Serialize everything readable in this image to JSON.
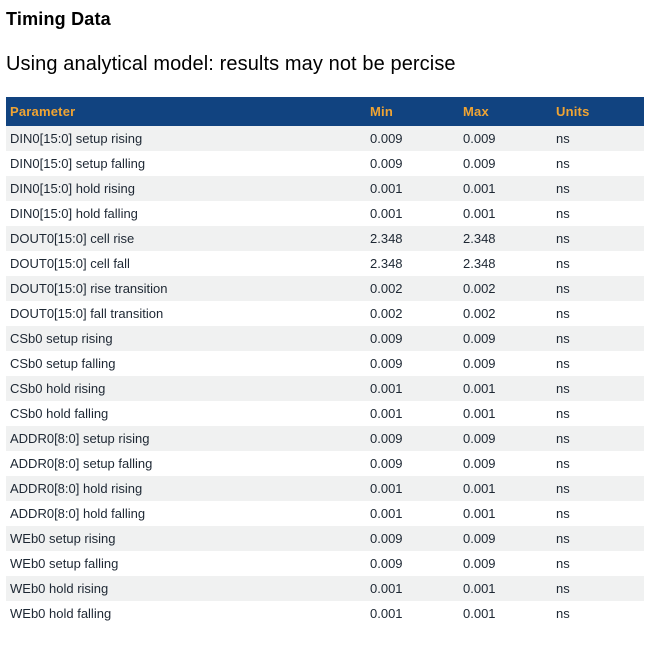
{
  "page": {
    "title": "Timing Data",
    "subtitle": "Using analytical model: results may not be percise"
  },
  "table": {
    "headers": [
      "Parameter",
      "Min",
      "Max",
      "Units"
    ],
    "rows": [
      {
        "parameter": "DIN0[15:0] setup rising",
        "min": "0.009",
        "max": "0.009",
        "units": "ns"
      },
      {
        "parameter": "DIN0[15:0] setup falling",
        "min": "0.009",
        "max": "0.009",
        "units": "ns"
      },
      {
        "parameter": "DIN0[15:0] hold rising",
        "min": "0.001",
        "max": "0.001",
        "units": "ns"
      },
      {
        "parameter": "DIN0[15:0] hold falling",
        "min": "0.001",
        "max": "0.001",
        "units": "ns"
      },
      {
        "parameter": "DOUT0[15:0] cell rise",
        "min": "2.348",
        "max": "2.348",
        "units": "ns"
      },
      {
        "parameter": "DOUT0[15:0] cell fall",
        "min": "2.348",
        "max": "2.348",
        "units": "ns"
      },
      {
        "parameter": "DOUT0[15:0] rise transition",
        "min": "0.002",
        "max": "0.002",
        "units": "ns"
      },
      {
        "parameter": "DOUT0[15:0] fall transition",
        "min": "0.002",
        "max": "0.002",
        "units": "ns"
      },
      {
        "parameter": "CSb0 setup rising",
        "min": "0.009",
        "max": "0.009",
        "units": "ns"
      },
      {
        "parameter": "CSb0 setup falling",
        "min": "0.009",
        "max": "0.009",
        "units": "ns"
      },
      {
        "parameter": "CSb0 hold rising",
        "min": "0.001",
        "max": "0.001",
        "units": "ns"
      },
      {
        "parameter": "CSb0 hold falling",
        "min": "0.001",
        "max": "0.001",
        "units": "ns"
      },
      {
        "parameter": "ADDR0[8:0] setup rising",
        "min": "0.009",
        "max": "0.009",
        "units": "ns"
      },
      {
        "parameter": "ADDR0[8:0] setup falling",
        "min": "0.009",
        "max": "0.009",
        "units": "ns"
      },
      {
        "parameter": "ADDR0[8:0] hold rising",
        "min": "0.001",
        "max": "0.001",
        "units": "ns"
      },
      {
        "parameter": "ADDR0[8:0] hold falling",
        "min": "0.001",
        "max": "0.001",
        "units": "ns"
      },
      {
        "parameter": "WEb0 setup rising",
        "min": "0.009",
        "max": "0.009",
        "units": "ns"
      },
      {
        "parameter": "WEb0 setup falling",
        "min": "0.009",
        "max": "0.009",
        "units": "ns"
      },
      {
        "parameter": "WEb0 hold rising",
        "min": "0.001",
        "max": "0.001",
        "units": "ns"
      },
      {
        "parameter": "WEb0 hold falling",
        "min": "0.001",
        "max": "0.001",
        "units": "ns"
      }
    ]
  },
  "colors": {
    "header_bg": "#114380",
    "header_text": "#F0A433",
    "row_stripe": "#F0F1F1",
    "body_text": "#1D2733"
  }
}
